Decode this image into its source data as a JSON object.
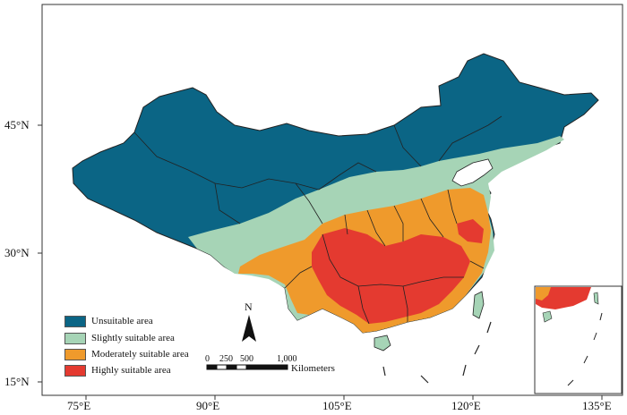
{
  "axes": {
    "lon_ticks": [
      "75°E",
      "90°E",
      "105°E",
      "120°E",
      "135°E"
    ],
    "lat_ticks": [
      "45°N",
      "30°N",
      "15°N"
    ]
  },
  "legend": {
    "items": [
      {
        "label": "Unsuitable area",
        "color": "#0b6585"
      },
      {
        "label": "Slightly suitable area",
        "color": "#a6d4b6"
      },
      {
        "label": "Moderately suitable area",
        "color": "#ef9a2c"
      },
      {
        "label": "Highly suitable area",
        "color": "#e43a30"
      }
    ]
  },
  "north_arrow": {
    "label": "N"
  },
  "scale_bar": {
    "ticks": [
      "0",
      "250",
      "500",
      "1,000"
    ],
    "unit": "Kilometers"
  },
  "colors": {
    "unsuitable": "#0b6585",
    "slightly": "#a6d4b6",
    "moderately": "#ef9a2c",
    "highly": "#e43a30",
    "border": "#222222"
  }
}
